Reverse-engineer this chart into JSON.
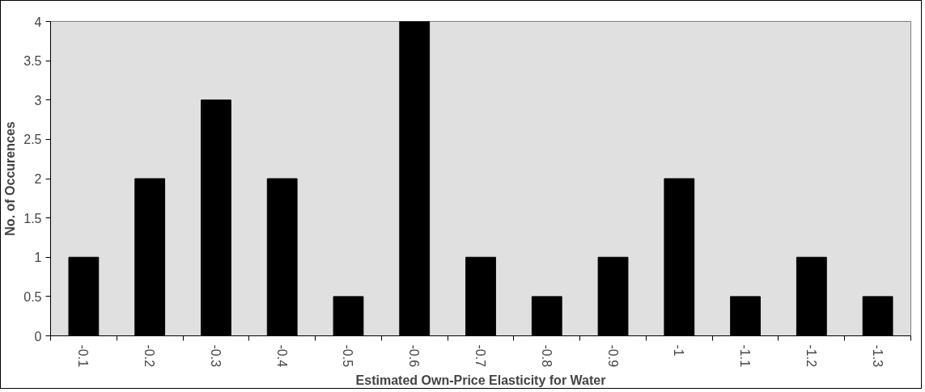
{
  "chart_data": {
    "type": "bar",
    "xlabel": "Estimated Own-Price Elasticity for Water",
    "ylabel": "No. of Occurences",
    "categories": [
      "-0.1",
      "-0.2",
      "-0.3",
      "-0.4",
      "-0.5",
      "-0.6",
      "-0.7",
      "-0.8",
      "-0.9",
      "-1",
      "-1.1",
      "-1.2",
      "-1.3"
    ],
    "values": [
      1,
      2,
      3,
      2,
      0.5,
      4,
      1,
      0.5,
      1,
      2,
      0.5,
      1,
      0.5
    ],
    "color": "#000000",
    "ylim": [
      0,
      4
    ],
    "yticks": [
      0,
      0.5,
      1,
      1.5,
      2,
      2.5,
      3,
      3.5,
      4
    ],
    "grid": false
  }
}
